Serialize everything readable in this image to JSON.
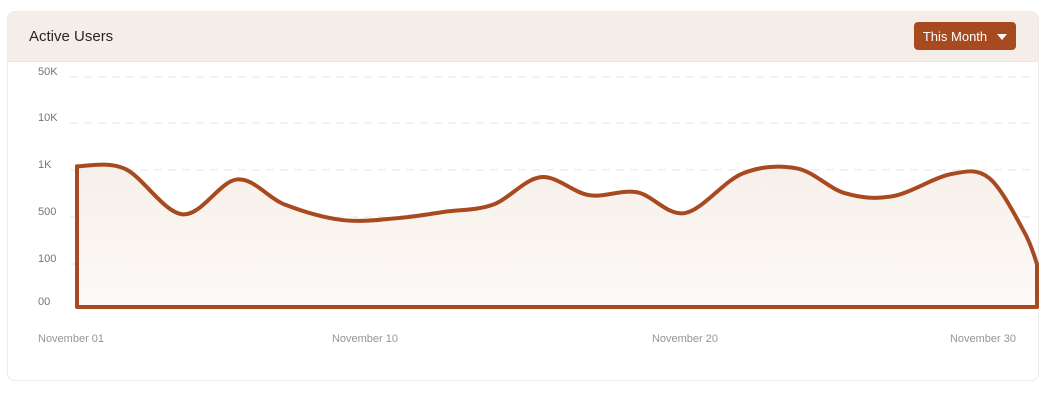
{
  "card": {
    "title": "Active Users",
    "range_button": {
      "label": "This Month",
      "icon": "caret-down-icon"
    }
  },
  "colors": {
    "accent": "#a84a1f",
    "fill": "#f7efe9",
    "header_bg": "#f5ede7",
    "grid": "#e9e6e3"
  },
  "chart_data": {
    "type": "area",
    "title": "Active Users",
    "xlabel": "",
    "ylabel": "",
    "y_ticks": [
      "00",
      "100",
      "500",
      "1K",
      "10K",
      "50K"
    ],
    "x_ticks": [
      {
        "day": 1,
        "label": "November 01"
      },
      {
        "day": 10,
        "label": "November 10"
      },
      {
        "day": 20,
        "label": "November 20"
      },
      {
        "day": 30,
        "label": "November 30"
      }
    ],
    "y_scale_note": "categorical tick levels (00,100,500,1K,10K,50K)",
    "grid": true,
    "series": [
      {
        "x": [
          1,
          2.5,
          4.3,
          6,
          7.5,
          9.3,
          11,
          12.5,
          14,
          15.5,
          17,
          18.5,
          20,
          21.8,
          23.5,
          25,
          26.5,
          28.3,
          29.5,
          30.6,
          31
        ],
        "y": [
          1200,
          1060,
          520,
          870,
          600,
          450,
          480,
          540,
          600,
          900,
          690,
          720,
          530,
          950,
          1080,
          710,
          680,
          940,
          890,
          300,
          100
        ]
      }
    ]
  }
}
